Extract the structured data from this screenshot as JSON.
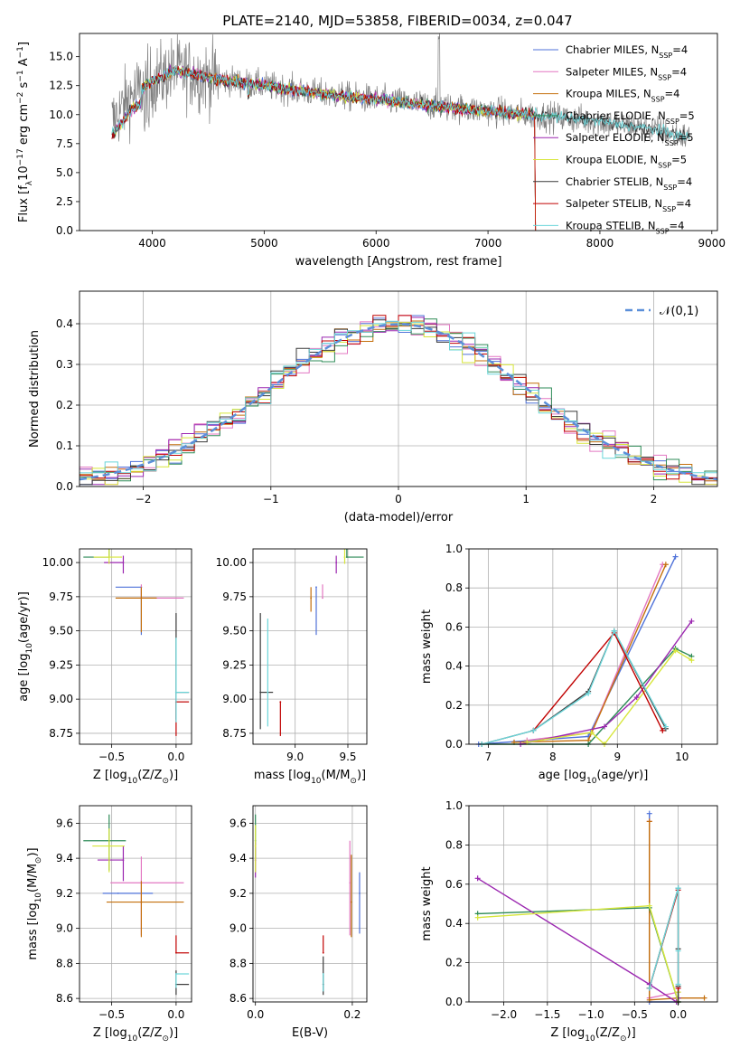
{
  "figure_title": "PLATE=2140, MJD=53858, FIBERID=0034, z=0.047",
  "model_colors": [
    "#4f72d9",
    "#e377c2",
    "#c46f0c",
    "#2e8b57",
    "#9b27b0",
    "#d7e63a",
    "#3a3a3a",
    "#c00000",
    "#6ad5d9"
  ],
  "model_labels": [
    "Chabrier MILES, N$SSP$=4",
    "Salpeter MILES, N$SSP$=4",
    "Kroupa MILES, N$SSP$=4",
    "Chabrier ELODIE, N$SSP$=5",
    "Salpeter ELODIE, N$SSP$=5",
    "Kroupa ELODIE, N$SSP$=5",
    "Chabrier STELIB, N$SSP$=4",
    "Salpeter STELIB, N$SSP$=4",
    "Kroupa STELIB, N$SSP$=4"
  ],
  "chart_data": [
    {
      "id": "spectrum",
      "type": "line",
      "xlabel": "wavelength [Angstrom, rest frame]",
      "ylabel": "Flux [f$λ$10$−17$ erg cm$−2$ s$−1$ A$−1$]",
      "xlim": [
        3350,
        9050
      ],
      "ylim": [
        0,
        17
      ],
      "xticks": [
        4000,
        5000,
        6000,
        7000,
        8000,
        9000
      ],
      "yticks": [
        0.0,
        2.5,
        5.0,
        7.5,
        10.0,
        12.5,
        15.0
      ],
      "grid": false,
      "legend": "top-right",
      "data_series": {
        "name": "",
        "x_range": [
          3640,
          8800
        ],
        "color": "#808080"
      },
      "continuum": [
        [
          3650,
          9.5
        ],
        [
          3800,
          11.5
        ],
        [
          3950,
          12.6
        ],
        [
          4200,
          13.8
        ],
        [
          4500,
          13.2
        ],
        [
          5000,
          12.5
        ],
        [
          5500,
          11.8
        ],
        [
          6000,
          11.3
        ],
        [
          6500,
          10.8
        ],
        [
          7000,
          10.3
        ],
        [
          7500,
          9.9
        ],
        [
          8000,
          9.4
        ],
        [
          8500,
          8.7
        ],
        [
          8800,
          8.0
        ]
      ]
    },
    {
      "id": "residuals",
      "type": "histogram",
      "xlabel": "(data-model)/error",
      "ylabel": "Normed distribution",
      "xlim": [
        -2.5,
        2.5
      ],
      "ylim": [
        0,
        0.48
      ],
      "xticks": [
        -2,
        -1,
        0,
        1,
        2
      ],
      "yticks": [
        0.0,
        0.1,
        0.2,
        0.3,
        0.4
      ],
      "grid": true,
      "legend": "top-right",
      "reference_curve": {
        "name": "𝒩(0,1)",
        "color": "#5b8fd9"
      },
      "bin_width": 0.1
    },
    {
      "id": "age-vs-Z",
      "type": "errorbar",
      "xlabel": "Z [log$10$(Z/Z$⊙$)]",
      "ylabel": "age  [log$10$(age/yr)]",
      "xlim": [
        -0.75,
        0.12
      ],
      "ylim": [
        8.67,
        10.1
      ],
      "xticks": [
        -0.5,
        0.0
      ],
      "yticks": [
        8.75,
        9.0,
        9.25,
        9.5,
        9.75,
        10.0
      ],
      "grid": true,
      "points": [
        {
          "x": -0.27,
          "xerr": [
            0.2,
            0.0
          ],
          "y": 9.82,
          "yerr": [
            0.35,
            0.0
          ],
          "c": 0
        },
        {
          "x": -0.27,
          "xerr": [
            0.0,
            0.33
          ],
          "y": 9.74,
          "yerr": [
            0.0,
            0.1
          ],
          "c": 1
        },
        {
          "x": -0.27,
          "xerr": [
            0.2,
            0.12
          ],
          "y": 9.74,
          "yerr": [
            0.25,
            0.08
          ],
          "c": 2
        },
        {
          "x": -0.52,
          "xerr": [
            0.2,
            0.0
          ],
          "y": 10.04,
          "yerr": [
            0.0,
            0.06
          ],
          "c": 3
        },
        {
          "x": -0.41,
          "xerr": [
            0.15,
            0.0
          ],
          "y": 10.0,
          "yerr": [
            0.08,
            0.05
          ],
          "c": 4
        },
        {
          "x": -0.52,
          "xerr": [
            0.12,
            0.1
          ],
          "y": 10.04,
          "yerr": [
            0.05,
            0.06
          ],
          "c": 5
        },
        {
          "x": 0.0,
          "xerr": [
            0.0,
            0.1
          ],
          "y": 9.05,
          "yerr": [
            0.2,
            0.58
          ],
          "c": 6
        },
        {
          "x": 0.0,
          "xerr": [
            0.0,
            0.1
          ],
          "y": 8.98,
          "yerr": [
            0.25,
            0.0
          ],
          "c": 7
        },
        {
          "x": 0.0,
          "xerr": [
            0.0,
            0.1
          ],
          "y": 9.05,
          "yerr": [
            0.22,
            0.4
          ],
          "c": 8
        }
      ]
    },
    {
      "id": "age-vs-mass",
      "type": "errorbar",
      "xlabel": "mass [log$10$(M/M$⊙$)]",
      "ylabel": "",
      "xlim": [
        8.6,
        9.68
      ],
      "ylim": [
        8.67,
        10.1
      ],
      "xticks": [
        9.0,
        9.5
      ],
      "yticks": [
        8.75,
        9.0,
        9.25,
        9.5,
        9.75,
        10.0
      ],
      "grid": true,
      "points": [
        {
          "x": 9.2,
          "xerr": [
            0.0,
            0.0
          ],
          "y": 9.82,
          "yerr": [
            0.35,
            0.0
          ],
          "c": 0
        },
        {
          "x": 9.26,
          "xerr": [
            0.0,
            0.0
          ],
          "y": 9.74,
          "yerr": [
            0.0,
            0.1
          ],
          "c": 1
        },
        {
          "x": 9.15,
          "xerr": [
            0.0,
            0.0
          ],
          "y": 9.74,
          "yerr": [
            0.1,
            0.08
          ],
          "c": 2
        },
        {
          "x": 9.49,
          "xerr": [
            0.0,
            0.16
          ],
          "y": 10.04,
          "yerr": [
            0.0,
            0.06
          ],
          "c": 3
        },
        {
          "x": 9.39,
          "xerr": [
            0.0,
            0.0
          ],
          "y": 10.0,
          "yerr": [
            0.08,
            0.05
          ],
          "c": 4
        },
        {
          "x": 9.47,
          "xerr": [
            0.0,
            0.0
          ],
          "y": 10.04,
          "yerr": [
            0.05,
            0.06
          ],
          "c": 5
        },
        {
          "x": 8.67,
          "xerr": [
            0.0,
            0.12
          ],
          "y": 9.05,
          "yerr": [
            0.27,
            0.58
          ],
          "c": 6
        },
        {
          "x": 8.86,
          "xerr": [
            0.0,
            0.0
          ],
          "y": 8.98,
          "yerr": [
            0.25,
            0.0
          ],
          "c": 7
        },
        {
          "x": 8.74,
          "xerr": [
            0.0,
            0.0
          ],
          "y": 9.05,
          "yerr": [
            0.25,
            0.54
          ],
          "c": 8
        }
      ]
    },
    {
      "id": "weight-vs-age",
      "type": "line",
      "xlabel": "age  [log$10$(age/yr)]",
      "ylabel": "mass weight",
      "xlim": [
        6.7,
        10.55
      ],
      "ylim": [
        0,
        1.0
      ],
      "xticks": [
        7,
        8,
        9,
        10
      ],
      "yticks": [
        0.0,
        0.2,
        0.4,
        0.6,
        0.8,
        1.0
      ],
      "grid": true,
      "series": [
        {
          "c": 0,
          "x": [
            6.85,
            8.55,
            9.9
          ],
          "y": [
            0.0,
            0.04,
            0.96
          ]
        },
        {
          "c": 1,
          "x": [
            7.6,
            8.6,
            9.7
          ],
          "y": [
            0.02,
            0.06,
            0.92
          ]
        },
        {
          "c": 2,
          "x": [
            7.4,
            8.55,
            9.75
          ],
          "y": [
            0.01,
            0.02,
            0.92
          ]
        },
        {
          "c": 3,
          "x": [
            6.9,
            8.55,
            9.9,
            10.15
          ],
          "y": [
            0.0,
            0.0,
            0.49,
            0.45
          ]
        },
        {
          "c": 4,
          "x": [
            7.5,
            8.8,
            9.3,
            10.15
          ],
          "y": [
            0.0,
            0.09,
            0.24,
            0.63
          ]
        },
        {
          "c": 5,
          "x": [
            7.6,
            8.6,
            8.8,
            9.9,
            10.15
          ],
          "y": [
            0.01,
            0.06,
            0.0,
            0.48,
            0.43
          ]
        },
        {
          "c": 6,
          "x": [
            6.9,
            7.7,
            8.55,
            8.95,
            9.75
          ],
          "y": [
            0.0,
            0.07,
            0.27,
            0.58,
            0.08
          ]
        },
        {
          "c": 7,
          "x": [
            7.7,
            8.95,
            9.7
          ],
          "y": [
            0.07,
            0.57,
            0.07
          ]
        },
        {
          "c": 8,
          "x": [
            6.9,
            7.7,
            8.55,
            8.95,
            9.75
          ],
          "y": [
            0.0,
            0.07,
            0.26,
            0.58,
            0.09
          ]
        }
      ]
    },
    {
      "id": "mass-vs-Z",
      "type": "errorbar",
      "xlabel": "Z [log$10$(Z/Z$⊙$)]",
      "ylabel": "mass [log$10$(M/M$⊙$)]",
      "xlim": [
        -0.75,
        0.12
      ],
      "ylim": [
        8.58,
        9.7
      ],
      "xticks": [
        -0.5,
        0.0
      ],
      "yticks": [
        8.6,
        8.8,
        9.0,
        9.2,
        9.4,
        9.6
      ],
      "grid": true,
      "points": [
        {
          "x": -0.45,
          "xerr": [
            0.12,
            0.27
          ],
          "y": 9.2,
          "yerr": [
            0.0,
            0.0
          ],
          "c": 0
        },
        {
          "x": -0.27,
          "xerr": [
            0.24,
            0.33
          ],
          "y": 9.26,
          "yerr": [
            0.3,
            0.15
          ],
          "c": 1
        },
        {
          "x": -0.27,
          "xerr": [
            0.27,
            0.33
          ],
          "y": 9.15,
          "yerr": [
            0.2,
            0.12
          ],
          "c": 2
        },
        {
          "x": -0.52,
          "xerr": [
            0.2,
            0.13
          ],
          "y": 9.5,
          "yerr": [
            0.17,
            0.15
          ],
          "c": 3
        },
        {
          "x": -0.41,
          "xerr": [
            0.2,
            0.0
          ],
          "y": 9.39,
          "yerr": [
            0.12,
            0.08
          ],
          "c": 4
        },
        {
          "x": -0.52,
          "xerr": [
            0.13,
            0.12
          ],
          "y": 9.47,
          "yerr": [
            0.15,
            0.1
          ],
          "c": 5
        },
        {
          "x": 0.0,
          "xerr": [
            0.0,
            0.1
          ],
          "y": 8.68,
          "yerr": [
            0.06,
            0.08
          ],
          "c": 6
        },
        {
          "x": 0.0,
          "xerr": [
            0.0,
            0.1
          ],
          "y": 8.86,
          "yerr": [
            0.0,
            0.1
          ],
          "c": 7
        },
        {
          "x": 0.0,
          "xerr": [
            0.0,
            0.1
          ],
          "y": 8.74,
          "yerr": [
            0.08,
            0.0
          ],
          "c": 8
        }
      ]
    },
    {
      "id": "mass-vs-EBV",
      "type": "errorbar",
      "xlabel": "E(B-V)",
      "ylabel": "",
      "xlim": [
        -0.005,
        0.23
      ],
      "ylim": [
        8.58,
        9.7
      ],
      "xticks": [
        0.0,
        0.2
      ],
      "yticks": [
        8.6,
        8.8,
        9.0,
        9.2,
        9.4,
        9.6
      ],
      "grid": true,
      "points": [
        {
          "x": 0.215,
          "y": 9.2,
          "yerr": [
            0.23,
            0.12
          ],
          "c": 0
        },
        {
          "x": 0.195,
          "y": 9.26,
          "yerr": [
            0.3,
            0.24
          ],
          "c": 1
        },
        {
          "x": 0.198,
          "y": 9.15,
          "yerr": [
            0.2,
            0.27
          ],
          "c": 2
        },
        {
          "x": 0.0,
          "y": 9.5,
          "yerr": [
            0.1,
            0.15
          ],
          "c": 3
        },
        {
          "x": 0.0,
          "y": 9.39,
          "yerr": [
            0.1,
            0.1
          ],
          "c": 4
        },
        {
          "x": 0.0,
          "y": 9.47,
          "yerr": [
            0.15,
            0.12
          ],
          "c": 5
        },
        {
          "x": 0.14,
          "y": 8.68,
          "yerr": [
            0.06,
            0.16
          ],
          "c": 6
        },
        {
          "x": 0.14,
          "y": 8.86,
          "yerr": [
            0.0,
            0.1
          ],
          "c": 7
        },
        {
          "x": 0.14,
          "y": 8.74,
          "yerr": [
            0.1,
            0.0
          ],
          "c": 8
        }
      ]
    },
    {
      "id": "weight-vs-Z",
      "type": "line",
      "xlabel": "Z [log$10$(Z/Z$⊙$)]",
      "ylabel": "mass weight",
      "xlim": [
        -2.4,
        0.45
      ],
      "ylim": [
        0,
        1.0
      ],
      "xticks": [
        -2.0,
        -1.5,
        -1.0,
        -0.5,
        0.0
      ],
      "yticks": [
        0.0,
        0.2,
        0.4,
        0.6,
        0.8,
        1.0
      ],
      "grid": true,
      "series": [
        {
          "c": 0,
          "x": [
            -0.33,
            -0.33,
            0.0,
            0.0
          ],
          "y": [
            0.96,
            0.0,
            0.0,
            0.02
          ]
        },
        {
          "c": 1,
          "x": [
            -0.33,
            -0.33,
            0.0,
            0.0
          ],
          "y": [
            0.92,
            0.02,
            0.05,
            0.07
          ]
        },
        {
          "c": 2,
          "x": [
            -0.33,
            -0.33,
            0.0,
            0.3
          ],
          "y": [
            0.92,
            0.01,
            0.02,
            0.02
          ]
        },
        {
          "c": 3,
          "x": [
            -2.3,
            -0.33,
            0.0,
            0.0
          ],
          "y": [
            0.45,
            0.48,
            0.0,
            0.0
          ]
        },
        {
          "c": 4,
          "x": [
            -2.3,
            -0.33,
            -0.02,
            0.0
          ],
          "y": [
            0.63,
            0.09,
            0.0,
            0.02
          ]
        },
        {
          "c": 5,
          "x": [
            -2.3,
            -0.33,
            0.0,
            0.0
          ],
          "y": [
            0.43,
            0.49,
            0.0,
            0.05
          ]
        },
        {
          "c": 6,
          "x": [
            -0.33,
            0.0,
            0.0,
            0.0,
            0.0
          ],
          "y": [
            0.07,
            0.58,
            0.27,
            0.0,
            0.08
          ]
        },
        {
          "c": 7,
          "x": [
            -0.33,
            0.0,
            0.0
          ],
          "y": [
            0.07,
            0.57,
            0.07
          ]
        },
        {
          "c": 8,
          "x": [
            -0.33,
            0.0,
            0.0,
            0.0
          ],
          "y": [
            0.07,
            0.58,
            0.26,
            0.09
          ]
        }
      ]
    }
  ]
}
